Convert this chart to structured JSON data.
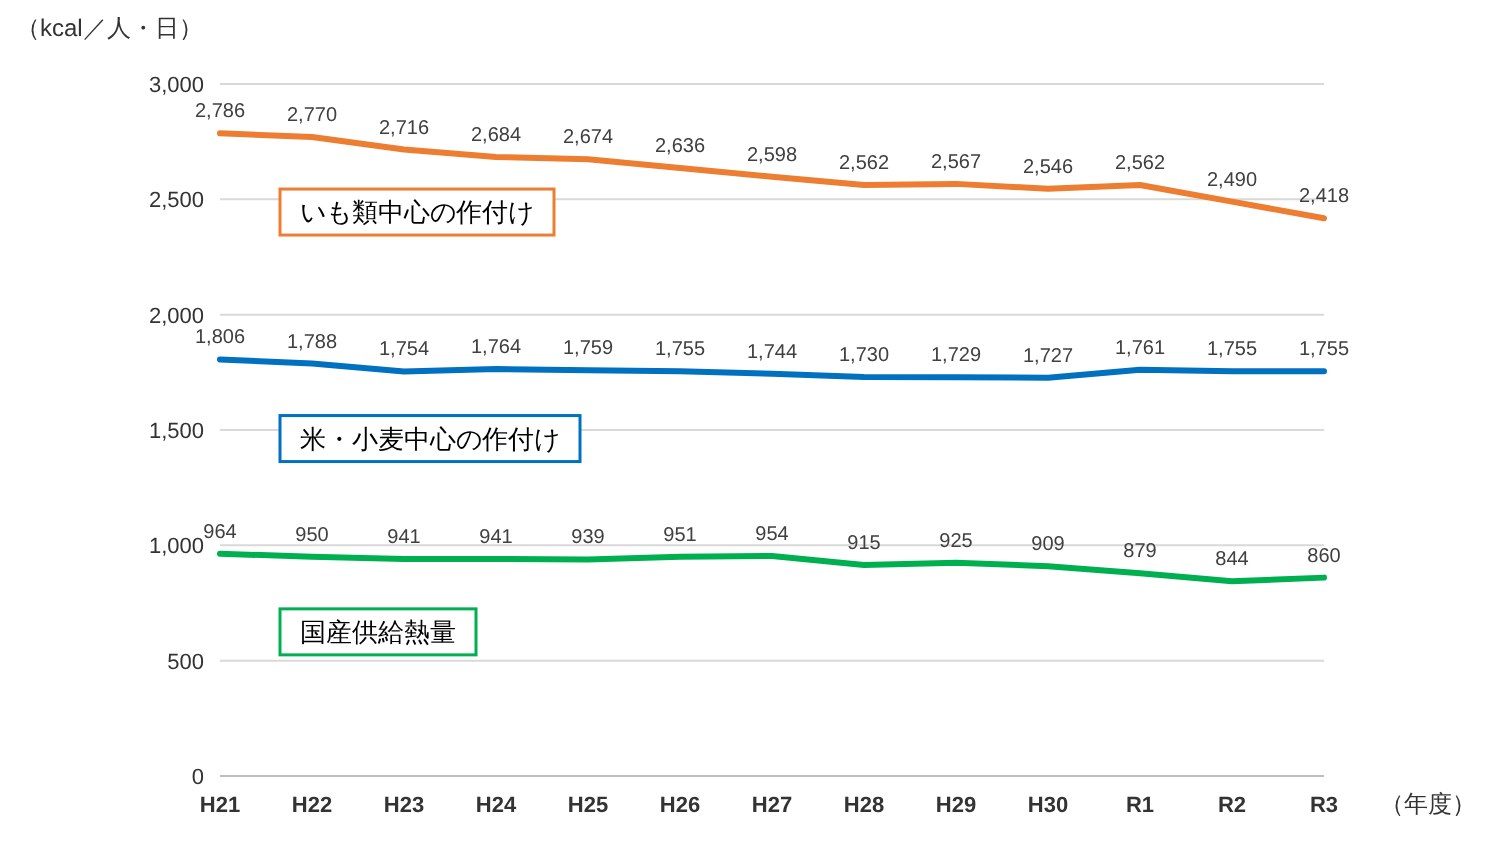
{
  "chart_data": {
    "type": "line",
    "ylabel": "（kcal／人・日）",
    "xlabel": "（年度）",
    "categories": [
      "H21",
      "H22",
      "H23",
      "H24",
      "H25",
      "H26",
      "H27",
      "H28",
      "H29",
      "H30",
      "R1",
      "R2",
      "R3"
    ],
    "ylim": [
      0,
      3000
    ],
    "yticks": [
      0,
      500,
      {
        "value": 1000,
        "label": "1,000"
      },
      {
        "value": 1500,
        "label": "1,500"
      },
      {
        "value": 2000,
        "label": "2,000"
      },
      {
        "value": 2500,
        "label": "2,500"
      },
      {
        "value": 3000,
        "label": "3,000"
      }
    ],
    "grid": "y",
    "legend": false,
    "marker": "none",
    "line_style": "solid",
    "series": [
      {
        "name": "いも類中心の作付け",
        "color": "#ed7d31",
        "values": [
          2786,
          2770,
          2716,
          2684,
          2674,
          2636,
          2598,
          2562,
          2567,
          2546,
          2562,
          2490,
          2418
        ],
        "value_labels": [
          "2,786",
          "2,770",
          "2,716",
          "2,684",
          "2,674",
          "2,636",
          "2,598",
          "2,562",
          "2,567",
          "2,546",
          "2,562",
          "2,490",
          "2,418"
        ]
      },
      {
        "name": "米・小麦中心の作付け",
        "color": "#0070c0",
        "values": [
          1806,
          1788,
          1754,
          1764,
          1759,
          1755,
          1744,
          1730,
          1729,
          1727,
          1761,
          1755,
          1755
        ],
        "value_labels": [
          "1,806",
          "1,788",
          "1,754",
          "1,764",
          "1,759",
          "1,755",
          "1,744",
          "1,730",
          "1,729",
          "1,727",
          "1,761",
          "1,755",
          "1,755"
        ]
      },
      {
        "name": "国産供給熱量",
        "color": "#00b050",
        "values": [
          964,
          950,
          941,
          941,
          939,
          951,
          954,
          915,
          925,
          909,
          879,
          844,
          860
        ],
        "value_labels": [
          "964",
          "950",
          "941",
          "941",
          "939",
          "951",
          "954",
          "915",
          "925",
          "909",
          "879",
          "844",
          "860"
        ]
      }
    ]
  }
}
